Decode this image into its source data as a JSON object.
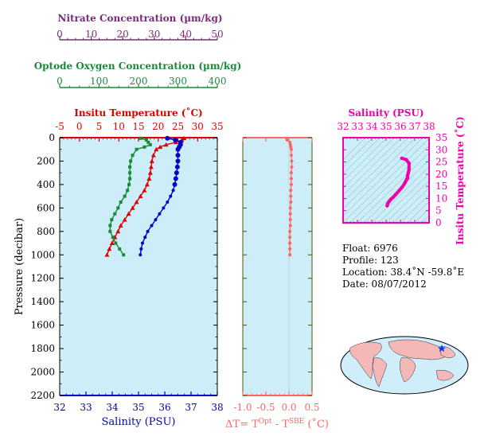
{
  "colors": {
    "nitrate": "#7a2a7a",
    "oxygen": "#1a8a3a",
    "temperature": "#dd0000",
    "salinity": "#0000cc",
    "delta": "#ff6666",
    "ts_plot": "#ee00aa",
    "panel_bg": "#cdeef8"
  },
  "labels": {
    "nitrate_title": "Nitrate Concentration (µm/kg)",
    "oxygen_title": "Optode Oxygen Concentration (µm/kg)",
    "temp_title": "Insitu Temperature (˚C)",
    "pressure_title": "Pressure (decibar)",
    "salinity_title": "Salinity (PSU)",
    "delta_title": "ΔT= T",
    "delta_sup1": "Opt",
    "delta_mid": " - T",
    "delta_sup2": "SBE",
    "delta_unit": " (˚C)",
    "ts_sal_title": "Salinity (PSU)",
    "ts_temp_title": "Insitu Temperature (˚C)"
  },
  "info": {
    "float": "Float:  6976",
    "profile": "Profile:  123",
    "location": "Location:  38.4˚N  -59.8˚E",
    "date": "Date:  08/07/2012"
  },
  "chart_data": [
    {
      "type": "line",
      "panel": "profiles",
      "y_label": "Pressure (decibar)",
      "ylim": [
        2200,
        0
      ],
      "y_ticks": [
        0,
        200,
        400,
        600,
        800,
        1000,
        1200,
        1400,
        1600,
        1800,
        2000,
        2200
      ],
      "axes": {
        "nitrate": {
          "label": "Nitrate Concentration (µm/kg)",
          "range": [
            0,
            50
          ],
          "ticks": [
            0,
            10,
            20,
            30,
            40,
            50
          ]
        },
        "oxygen": {
          "label": "Optode Oxygen Concentration (µm/kg)",
          "range": [
            0,
            400
          ],
          "ticks": [
            0,
            100,
            200,
            300,
            400
          ]
        },
        "temperature": {
          "label": "Insitu Temperature (˚C)",
          "range": [
            -5,
            35
          ],
          "ticks": [
            -5,
            0,
            5,
            10,
            15,
            20,
            25,
            30,
            35
          ]
        },
        "salinity": {
          "label": "Salinity (PSU)",
          "range": [
            32,
            38
          ],
          "ticks": [
            32,
            33,
            34,
            35,
            36,
            37,
            38
          ]
        }
      },
      "series": [
        {
          "key": "temperature",
          "pressure": [
            5,
            20,
            40,
            60,
            80,
            100,
            150,
            200,
            250,
            300,
            350,
            400,
            450,
            500,
            550,
            600,
            650,
            700,
            750,
            800,
            850,
            900,
            950,
            1000
          ],
          "values": [
            26.5,
            26.0,
            24.5,
            22.0,
            20.5,
            19.5,
            18.8,
            18.4,
            18.2,
            18.0,
            17.7,
            17.2,
            16.5,
            15.5,
            14.5,
            13.5,
            12.5,
            11.5,
            10.5,
            9.8,
            9.0,
            8.3,
            7.6,
            7.0
          ]
        },
        {
          "key": "salinity",
          "pressure": [
            5,
            20,
            40,
            60,
            80,
            100,
            150,
            200,
            250,
            300,
            350,
            400,
            450,
            500,
            550,
            600,
            650,
            700,
            750,
            800,
            850,
            900,
            950,
            1000
          ],
          "values": [
            36.1,
            36.4,
            36.6,
            36.6,
            36.55,
            36.5,
            36.5,
            36.5,
            36.48,
            36.45,
            36.42,
            36.38,
            36.32,
            36.22,
            36.1,
            35.95,
            35.8,
            35.65,
            35.5,
            35.35,
            35.25,
            35.15,
            35.1,
            35.07
          ]
        },
        {
          "key": "oxygen",
          "pressure": [
            5,
            20,
            40,
            60,
            80,
            100,
            150,
            200,
            250,
            300,
            350,
            400,
            450,
            500,
            550,
            600,
            650,
            700,
            750,
            800,
            850,
            900,
            950,
            1000
          ],
          "values": [
            205,
            220,
            225,
            230,
            215,
            195,
            185,
            180,
            178,
            178,
            178,
            176,
            172,
            165,
            155,
            148,
            140,
            132,
            128,
            128,
            135,
            142,
            152,
            162
          ]
        }
      ]
    },
    {
      "type": "scatter",
      "panel": "delta_t",
      "x_label": "ΔT= T^Opt - T^SBE (˚C)",
      "xlim": [
        -1.0,
        0.5
      ],
      "x_ticks": [
        -1.0,
        -0.5,
        0.0,
        0.5
      ],
      "ylim": [
        2200,
        0
      ],
      "pressure": [
        5,
        20,
        40,
        60,
        80,
        100,
        150,
        200,
        250,
        300,
        350,
        400,
        450,
        500,
        550,
        600,
        650,
        700,
        750,
        800,
        850,
        900,
        950,
        1000
      ],
      "values": [
        -0.05,
        -0.04,
        0.02,
        0.03,
        0.04,
        0.05,
        0.05,
        0.06,
        0.06,
        0.05,
        0.05,
        0.05,
        0.04,
        0.04,
        0.04,
        0.03,
        0.03,
        0.03,
        0.03,
        0.02,
        0.02,
        0.02,
        0.02,
        0.02
      ]
    },
    {
      "type": "line",
      "panel": "ts_diagram",
      "x_label": "Salinity (PSU)",
      "y_label": "Insitu Temperature (˚C)",
      "xlim": [
        32,
        38
      ],
      "x_ticks": [
        32,
        33,
        34,
        35,
        36,
        37,
        38
      ],
      "ylim": [
        0,
        35
      ],
      "y_ticks": [
        0,
        5,
        10,
        15,
        20,
        25,
        30,
        35
      ],
      "x": [
        36.1,
        36.4,
        36.6,
        36.6,
        36.55,
        36.5,
        36.5,
        36.5,
        36.48,
        36.45,
        36.42,
        36.38,
        36.32,
        36.22,
        36.1,
        35.95,
        35.8,
        35.65,
        35.5,
        35.35,
        35.25,
        35.15,
        35.1,
        35.07
      ],
      "y": [
        26.5,
        26.0,
        24.5,
        22.0,
        20.5,
        19.5,
        18.8,
        18.4,
        18.2,
        18.0,
        17.7,
        17.2,
        16.5,
        15.5,
        14.5,
        13.5,
        12.5,
        11.5,
        10.5,
        9.8,
        9.0,
        8.3,
        7.6,
        7.0
      ]
    }
  ]
}
